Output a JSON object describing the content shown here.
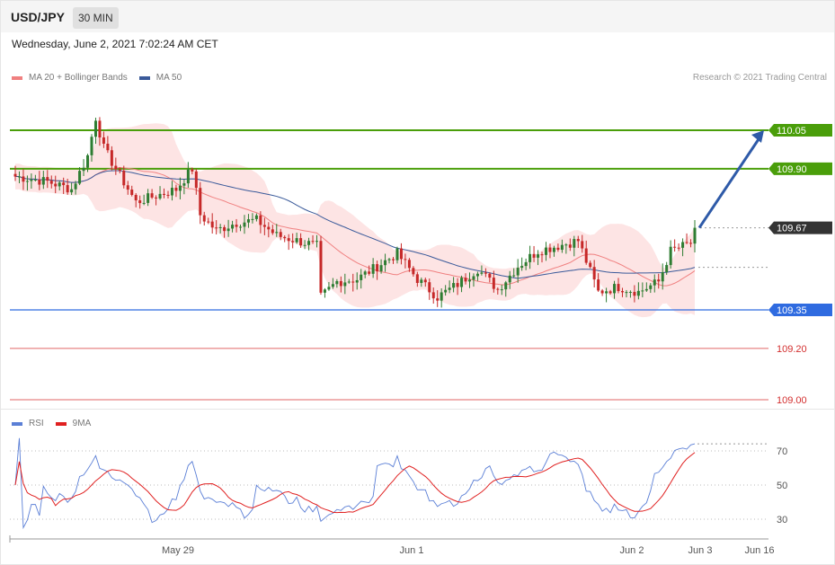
{
  "header": {
    "symbol": "USD/JPY",
    "timeframe": "30 MIN"
  },
  "datetime": "Wednesday, June 2, 2021 7:02:24 AM CET",
  "legend_price": [
    {
      "label": "MA 20 + Bollinger Bands",
      "color": "#f08080"
    },
    {
      "label": "MA 50",
      "color": "#3a5a9a"
    }
  ],
  "legend_rsi": [
    {
      "label": "RSI",
      "color": "#5b7fd6"
    },
    {
      "label": "9MA",
      "color": "#e02020"
    }
  ],
  "copyright": "Research © 2021 Trading Central",
  "colors": {
    "up": "#2e7d32",
    "down": "#c62828",
    "resistance": "#4a9e0a",
    "support": "#2f6be0",
    "target": "#d32f2f",
    "current": "#333333",
    "arrow": "#2e5aa8",
    "band": "#fde4e4",
    "ma20": "#f08080",
    "ma50": "#3a5a9a"
  },
  "chart_data": {
    "type": "candlestick",
    "ylim": [
      108.95,
      110.25
    ],
    "current_price": 109.67,
    "levels": [
      {
        "value": 110.05,
        "label": "110.05",
        "kind": "resistance"
      },
      {
        "value": 109.9,
        "label": "109.90",
        "kind": "resistance"
      },
      {
        "value": 109.67,
        "label": "109.67",
        "kind": "current"
      },
      {
        "value": 109.35,
        "label": "109.35",
        "kind": "support"
      },
      {
        "value": 109.2,
        "label": "109.20",
        "kind": "target"
      },
      {
        "value": 109.0,
        "label": "109.00",
        "kind": "target"
      }
    ],
    "x_ticks": [
      "May 29",
      "Jun 1",
      "Jun 2",
      "Jun 3",
      "Jun 16"
    ],
    "forecast_arrow": {
      "from": 109.67,
      "to": 110.05
    },
    "rsi": {
      "ticks": [
        "70",
        "50",
        "30"
      ],
      "ylim": [
        20,
        80
      ],
      "levels": [
        70,
        50,
        30
      ]
    }
  }
}
